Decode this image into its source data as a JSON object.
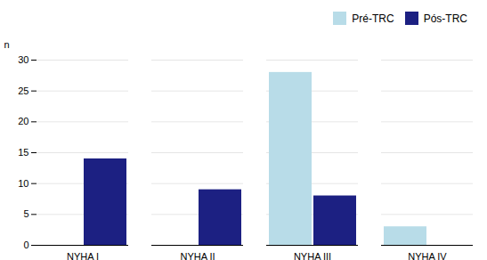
{
  "chart_data": {
    "type": "bar",
    "categories": [
      "NYHA I",
      "NYHA II",
      "NYHA III",
      "NYHA IV"
    ],
    "series": [
      {
        "name": "Pré-TRC",
        "color": "#b8dce8",
        "values": [
          0,
          0,
          28,
          3
        ]
      },
      {
        "name": "Pós-TRC",
        "color": "#1c2082",
        "values": [
          14,
          9,
          8,
          0
        ]
      }
    ],
    "ylabel": "n",
    "ylim": [
      0,
      30
    ],
    "yticks": [
      0,
      5,
      10,
      15,
      20,
      25,
      30
    ],
    "grid": true,
    "legend": "upper right"
  }
}
